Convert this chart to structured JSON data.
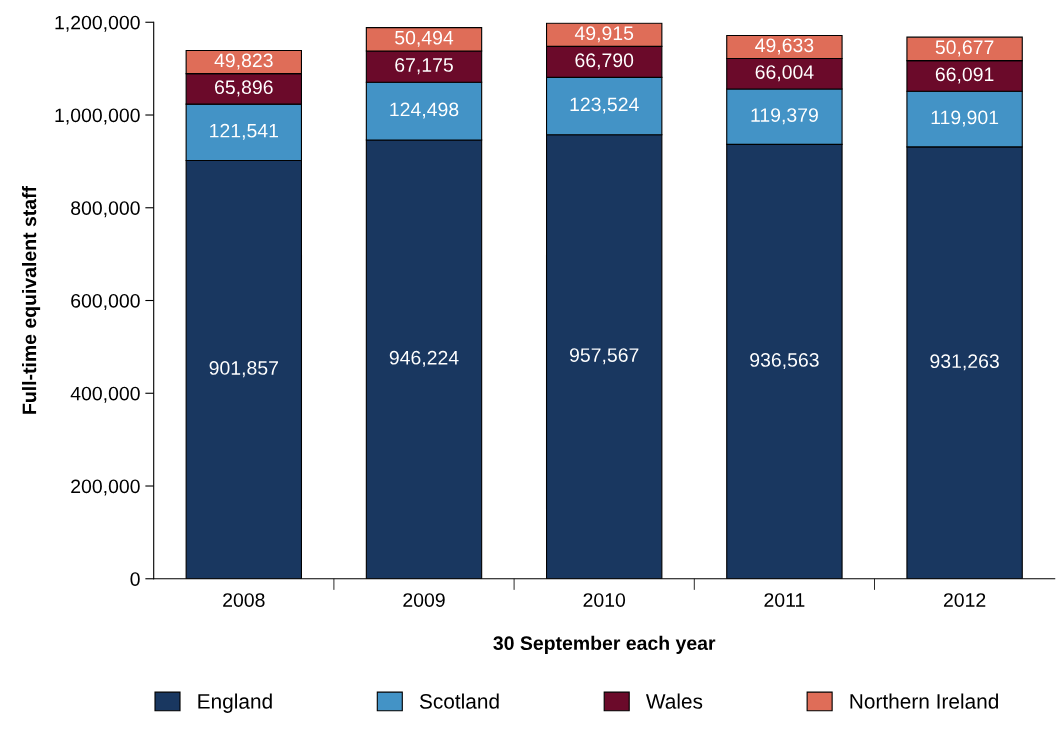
{
  "chart_data": {
    "type": "bar",
    "stacked": true,
    "xlabel": "30 September each year",
    "ylabel": "Full-time equivalent staff",
    "categories": [
      "2008",
      "2009",
      "2010",
      "2011",
      "2012"
    ],
    "series": [
      {
        "name": "England",
        "color": "#193760",
        "values": [
          901857,
          946224,
          957567,
          936563,
          931263
        ],
        "value_labels": [
          "901,857",
          "946,224",
          "957,567",
          "936,563",
          "931,263"
        ]
      },
      {
        "name": "Scotland",
        "color": "#4393c6",
        "values": [
          121541,
          124498,
          123524,
          119379,
          119901
        ],
        "value_labels": [
          "121,541",
          "124,498",
          "123,524",
          "119,379",
          "119,901"
        ]
      },
      {
        "name": "Wales",
        "color": "#6b0a2a",
        "values": [
          65896,
          67175,
          66790,
          66004,
          66091
        ],
        "value_labels": [
          "65,896",
          "67,175",
          "66,790",
          "66,004",
          "66,091"
        ]
      },
      {
        "name": "Northern Ireland",
        "color": "#df6d58",
        "values": [
          49823,
          50494,
          49915,
          49633,
          50677
        ],
        "value_labels": [
          "49,823",
          "50,494",
          "49,915",
          "49,633",
          "50,677"
        ]
      }
    ],
    "ylim": [
      0,
      1200000
    ],
    "yticks": [
      {
        "value": 0,
        "label": "0"
      },
      {
        "value": 200000,
        "label": "200,000"
      },
      {
        "value": 400000,
        "label": "400,000"
      },
      {
        "value": 600000,
        "label": "600,000"
      },
      {
        "value": 800000,
        "label": "800,000"
      },
      {
        "value": 1000000,
        "label": "1,000,000"
      },
      {
        "value": 1200000,
        "label": "1,200,000"
      }
    ],
    "legend": "bottom"
  }
}
